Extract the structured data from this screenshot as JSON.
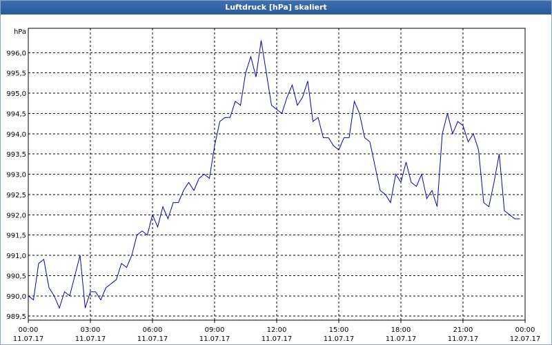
{
  "window": {
    "title": "Luftdruck [hPa] skaliert"
  },
  "chart_data": {
    "type": "line",
    "title": "Luftdruck [hPa] skaliert",
    "ylabel": "hPa",
    "xlabel": "",
    "ylim": [
      989.4,
      996.6
    ],
    "yticks": [
      "996,0",
      "995,5",
      "995,0",
      "994,5",
      "994,0",
      "993,5",
      "993,0",
      "992,5",
      "992,0",
      "991,5",
      "991,0",
      "990,5",
      "990,0",
      "989,5"
    ],
    "ytick_values": [
      996.0,
      995.5,
      995.0,
      994.5,
      994.0,
      993.5,
      993.0,
      992.5,
      992.0,
      991.5,
      991.0,
      990.5,
      990.0,
      989.5
    ],
    "xticks": [
      {
        "time": "00:00",
        "date": "11.07.17"
      },
      {
        "time": "03:00",
        "date": "11.07.17"
      },
      {
        "time": "06:00",
        "date": "11.07.17"
      },
      {
        "time": "09:00",
        "date": "11.07.17"
      },
      {
        "time": "12:00",
        "date": "11.07.17"
      },
      {
        "time": "15:00",
        "date": "11.07.17"
      },
      {
        "time": "18:00",
        "date": "11.07.17"
      },
      {
        "time": "21:00",
        "date": "11.07.17"
      },
      {
        "time": "00:00",
        "date": "12.07.17"
      }
    ],
    "xrange_hours": [
      0,
      24
    ],
    "grid": true,
    "line_color": "#0000b4",
    "series": [
      {
        "x": [
          0.0,
          0.25,
          0.5,
          0.75,
          1.0,
          1.25,
          1.5,
          1.75,
          2.0,
          2.25,
          2.5,
          2.75,
          3.0,
          3.25,
          3.5,
          3.75,
          4.0,
          4.25,
          4.5,
          4.75,
          5.0,
          5.25,
          5.5,
          5.75,
          6.0,
          6.25,
          6.5,
          6.75,
          7.0,
          7.25,
          7.5,
          7.75,
          8.0,
          8.25,
          8.5,
          8.75,
          9.0,
          9.25,
          9.5,
          9.75,
          10.0,
          10.25,
          10.5,
          10.75,
          11.0,
          11.25,
          11.5,
          11.75,
          12.0,
          12.25,
          12.5,
          12.75,
          13.0,
          13.25,
          13.5,
          13.75,
          14.0,
          14.25,
          14.5,
          14.75,
          15.0,
          15.25,
          15.5,
          15.75,
          16.0,
          16.25,
          16.5,
          16.75,
          17.0,
          17.25,
          17.5,
          17.75,
          18.0,
          18.25,
          18.5,
          18.75,
          19.0,
          19.25,
          19.5,
          19.75,
          20.0,
          20.25,
          20.5,
          20.75,
          21.0,
          21.25,
          21.5,
          21.75,
          22.0,
          22.25,
          22.5,
          22.75,
          23.0,
          23.25,
          23.5,
          23.75
        ],
        "y": [
          990.0,
          989.9,
          990.8,
          990.9,
          990.2,
          990.0,
          989.7,
          990.1,
          990.0,
          990.5,
          991.0,
          989.7,
          990.1,
          990.1,
          989.9,
          990.2,
          990.3,
          990.4,
          990.8,
          990.7,
          991.0,
          991.5,
          991.6,
          991.5,
          992.0,
          991.7,
          992.2,
          991.9,
          992.3,
          992.3,
          992.6,
          992.8,
          992.6,
          992.9,
          993.0,
          992.9,
          993.7,
          994.3,
          994.4,
          994.4,
          994.8,
          994.7,
          995.5,
          995.9,
          995.4,
          996.3,
          995.5,
          994.7,
          994.6,
          994.5,
          994.9,
          995.2,
          994.7,
          994.9,
          995.3,
          994.3,
          994.4,
          993.9,
          993.9,
          993.7,
          993.6,
          993.9,
          993.9,
          994.8,
          994.5,
          993.9,
          993.8,
          993.2,
          992.6,
          992.5,
          992.3,
          993.0,
          992.8,
          993.3,
          992.8,
          992.7,
          993.0,
          992.4,
          992.6,
          992.2,
          994.0,
          994.5,
          994.0,
          994.3,
          994.2,
          993.8,
          994.0,
          993.6,
          992.3,
          992.2,
          992.8,
          993.5,
          992.1,
          992.0,
          991.9,
          991.9
        ]
      }
    ]
  }
}
